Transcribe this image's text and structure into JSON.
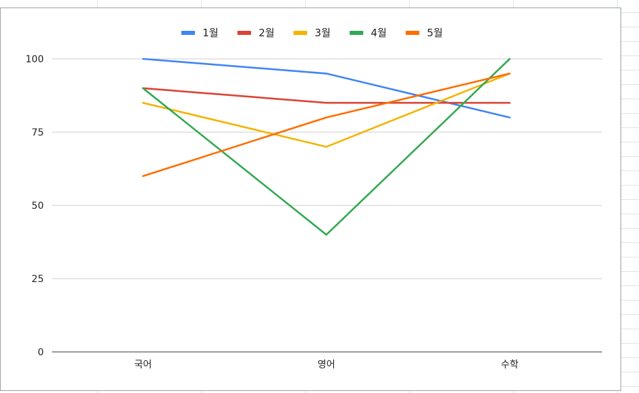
{
  "chart_data": {
    "type": "line",
    "title": "",
    "xlabel": "",
    "ylabel": "",
    "categories": [
      "국어",
      "영어",
      "수학"
    ],
    "ylim": [
      0,
      100
    ],
    "yticks": [
      0,
      25,
      50,
      75,
      100
    ],
    "grid": true,
    "legend_position": "top",
    "series": [
      {
        "name": "1월",
        "values": [
          100,
          95,
          80
        ],
        "color": "#4285f4"
      },
      {
        "name": "2월",
        "values": [
          90,
          85,
          85
        ],
        "color": "#db4437"
      },
      {
        "name": "3월",
        "values": [
          85,
          70,
          95
        ],
        "color": "#f4b400"
      },
      {
        "name": "4월",
        "values": [
          90,
          40,
          100
        ],
        "color": "#34a853"
      },
      {
        "name": "5월",
        "values": [
          60,
          80,
          95
        ],
        "color": "#ff6d01"
      }
    ]
  }
}
